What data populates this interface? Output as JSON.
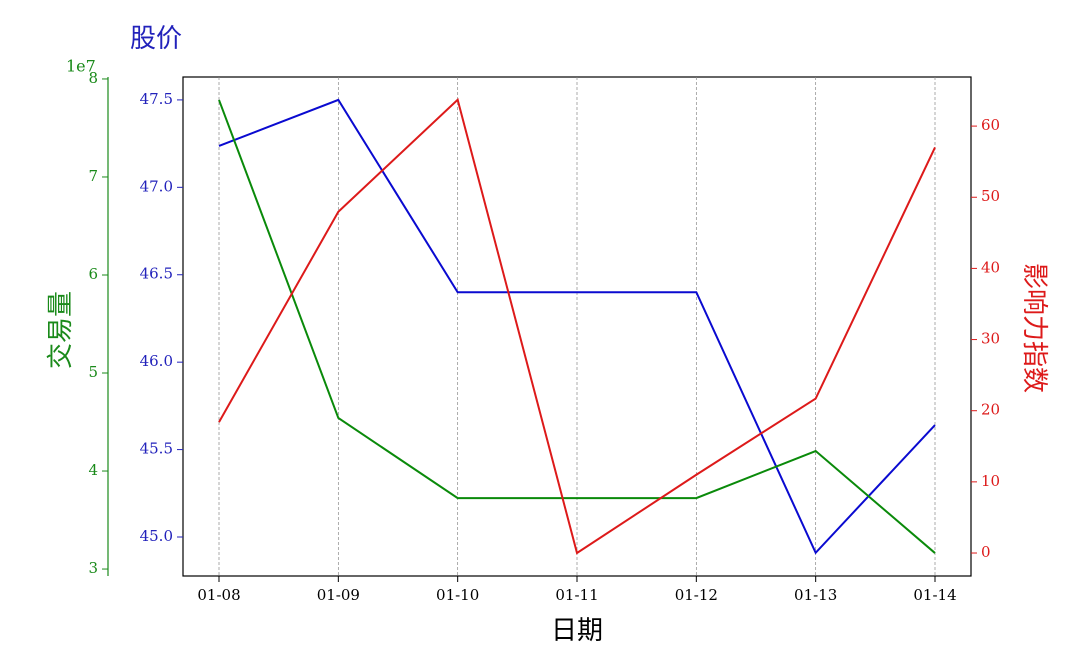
{
  "chart_data": {
    "type": "line",
    "title": "股价",
    "xlabel": "日期",
    "y2label": "影响力指数",
    "y3label": "交易量",
    "y3_offset_label": "1e7",
    "categories": [
      "01-08",
      "01-09",
      "01-10",
      "01-11",
      "01-12",
      "01-13",
      "01-14"
    ],
    "ylim": [
      44.777,
      47.631
    ],
    "yticks": [
      {
        "value": 45,
        "label": "45.0"
      },
      45.5,
      {
        "value": 46,
        "label": "46.0"
      },
      46.5,
      {
        "value": 47,
        "label": "47.0"
      },
      47.5
    ],
    "y2lim": [
      -3.23,
      66.9
    ],
    "y2ticks": [
      0,
      10,
      20,
      30,
      40,
      50,
      60
    ],
    "y3lim": [
      29290000,
      80200000
    ],
    "y3ticks": [
      {
        "value": 30000000,
        "label": "3"
      },
      {
        "value": 40000000,
        "label": "4"
      },
      {
        "value": 50000000,
        "label": "5"
      },
      {
        "value": 60000000,
        "label": "6"
      },
      {
        "value": 70000000,
        "label": "7"
      },
      {
        "value": 80000000,
        "label": "8"
      }
    ],
    "ycolor": "#2222bb",
    "y2color": "#dd1a1a",
    "y3color": "#1a8a1a",
    "xgrid": true,
    "series": [
      {
        "color": "#0a0ad0",
        "axis": "y",
        "values": [
          47.237,
          47.5,
          46.4,
          46.4,
          46.4,
          44.91,
          45.64
        ]
      },
      {
        "color": "#0a8a0a",
        "axis": "y3",
        "values": [
          77860000,
          45410000,
          37240000,
          37240000,
          37240000,
          42040000,
          31630000
        ]
      },
      {
        "color": "#dd1a1a",
        "axis": "y2",
        "values": [
          18.4,
          47.96,
          63.7,
          0,
          11.0,
          21.7,
          57.0
        ]
      }
    ]
  }
}
